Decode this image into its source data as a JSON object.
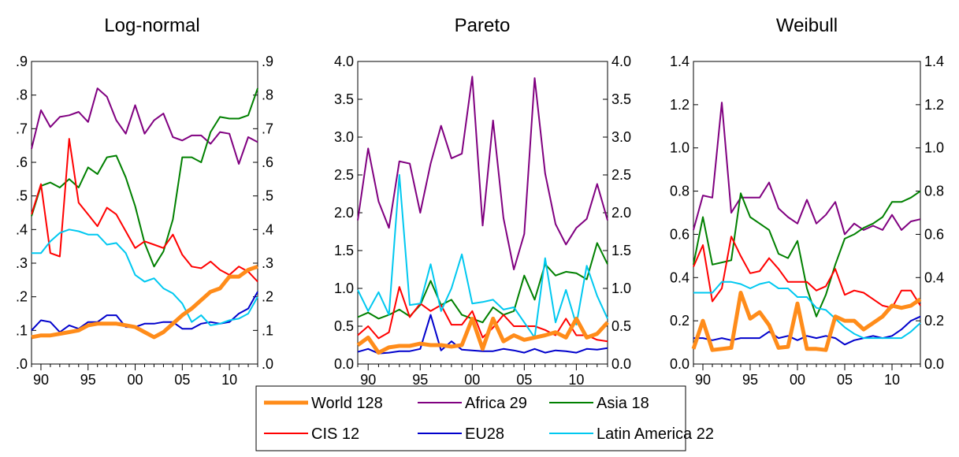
{
  "chart_data": [
    {
      "type": "line",
      "title": "Log-normal",
      "x": [
        1989,
        1990,
        1991,
        1992,
        1993,
        1994,
        1995,
        1996,
        1997,
        1998,
        1999,
        2000,
        2001,
        2002,
        2003,
        2004,
        2005,
        2006,
        2007,
        2008,
        2009,
        2010,
        2011,
        2012,
        2013
      ],
      "xticks": [
        "90",
        "95",
        "00",
        "05",
        "10"
      ],
      "xtick_values": [
        1990,
        1995,
        2000,
        2005,
        2010
      ],
      "xlim": [
        1989,
        2013
      ],
      "yticks": [
        ".0",
        ".1",
        ".2",
        ".3",
        ".4",
        ".5",
        ".6",
        ".7",
        ".8",
        ".9"
      ],
      "ytick_values": [
        0,
        0.1,
        0.2,
        0.3,
        0.4,
        0.5,
        0.6,
        0.7,
        0.8,
        0.9
      ],
      "ylim": [
        0,
        0.9
      ],
      "grid": false,
      "series": [
        {
          "name": "World 128",
          "color": "#ff8c1a",
          "values": [
            0.08,
            0.085,
            0.085,
            0.09,
            0.095,
            0.1,
            0.115,
            0.12,
            0.12,
            0.12,
            0.115,
            0.11,
            0.095,
            0.08,
            0.095,
            0.12,
            0.145,
            0.165,
            0.19,
            0.215,
            0.225,
            0.26,
            0.26,
            0.28,
            0.29
          ]
        },
        {
          "name": "Africa 29",
          "color": "#800080",
          "values": [
            0.64,
            0.755,
            0.705,
            0.735,
            0.74,
            0.75,
            0.72,
            0.82,
            0.795,
            0.725,
            0.685,
            0.77,
            0.685,
            0.725,
            0.745,
            0.675,
            0.665,
            0.68,
            0.68,
            0.655,
            0.69,
            0.685,
            0.595,
            0.675,
            0.66
          ]
        },
        {
          "name": "Asia 18",
          "color": "#008000",
          "values": [
            0.44,
            0.53,
            0.54,
            0.525,
            0.55,
            0.525,
            0.585,
            0.565,
            0.615,
            0.62,
            0.555,
            0.47,
            0.36,
            0.29,
            0.335,
            0.43,
            0.615,
            0.615,
            0.6,
            0.69,
            0.735,
            0.73,
            0.73,
            0.74,
            0.82
          ]
        },
        {
          "name": "CIS 12",
          "color": "#ff0000",
          "values": [
            0.445,
            0.535,
            0.33,
            0.32,
            0.67,
            0.48,
            0.445,
            0.41,
            0.465,
            0.445,
            0.395,
            0.345,
            0.365,
            0.355,
            0.345,
            0.385,
            0.325,
            0.29,
            0.285,
            0.305,
            0.28,
            0.265,
            0.29,
            0.275,
            0.245
          ]
        },
        {
          "name": "EU28",
          "color": "#0000cc",
          "values": [
            0.1,
            0.13,
            0.125,
            0.095,
            0.115,
            0.105,
            0.125,
            0.125,
            0.145,
            0.145,
            0.11,
            0.11,
            0.12,
            0.12,
            0.125,
            0.125,
            0.105,
            0.105,
            0.12,
            0.125,
            0.12,
            0.125,
            0.15,
            0.165,
            0.215
          ]
        },
        {
          "name": "Latin America 22",
          "color": "#00c8f0",
          "values": [
            0.33,
            0.33,
            0.365,
            0.39,
            0.4,
            0.395,
            0.385,
            0.385,
            0.355,
            0.36,
            0.33,
            0.265,
            0.245,
            0.255,
            0.225,
            0.21,
            0.18,
            0.125,
            0.145,
            0.115,
            0.12,
            0.13,
            0.135,
            0.15,
            0.2
          ]
        }
      ]
    },
    {
      "type": "line",
      "title": "Pareto",
      "x": [
        1989,
        1990,
        1991,
        1992,
        1993,
        1994,
        1995,
        1996,
        1997,
        1998,
        1999,
        2000,
        2001,
        2002,
        2003,
        2004,
        2005,
        2006,
        2007,
        2008,
        2009,
        2010,
        2011,
        2012,
        2013
      ],
      "xticks": [
        "90",
        "95",
        "00",
        "05",
        "10"
      ],
      "xtick_values": [
        1990,
        1995,
        2000,
        2005,
        2010
      ],
      "xlim": [
        1989,
        2013
      ],
      "yticks": [
        "0.0",
        "0.5",
        "1.0",
        "1.5",
        "2.0",
        "2.5",
        "3.0",
        "3.5",
        "4.0"
      ],
      "ytick_values": [
        0,
        0.5,
        1,
        1.5,
        2,
        2.5,
        3,
        3.5,
        4
      ],
      "ylim": [
        0,
        4
      ],
      "grid": false,
      "series": [
        {
          "name": "World 128",
          "color": "#ff8c1a",
          "values": [
            0.25,
            0.35,
            0.15,
            0.22,
            0.24,
            0.24,
            0.27,
            0.25,
            0.25,
            0.23,
            0.25,
            0.6,
            0.2,
            0.6,
            0.3,
            0.38,
            0.32,
            0.35,
            0.38,
            0.42,
            0.35,
            0.6,
            0.35,
            0.4,
            0.55
          ]
        },
        {
          "name": "Africa 29",
          "color": "#800080",
          "values": [
            1.9,
            2.85,
            2.15,
            1.8,
            2.68,
            2.65,
            2.0,
            2.65,
            3.15,
            2.72,
            2.78,
            3.8,
            1.83,
            3.22,
            1.93,
            1.25,
            1.72,
            3.78,
            2.52,
            1.85,
            1.58,
            1.8,
            1.92,
            2.38,
            1.9
          ]
        },
        {
          "name": "Asia 18",
          "color": "#008000",
          "values": [
            0.62,
            0.68,
            0.6,
            0.65,
            0.72,
            0.63,
            0.78,
            1.1,
            0.78,
            0.85,
            0.65,
            0.6,
            0.55,
            0.75,
            0.65,
            0.7,
            1.17,
            0.85,
            1.32,
            1.17,
            1.22,
            1.2,
            1.12,
            1.6,
            1.32
          ]
        },
        {
          "name": "CIS 12",
          "color": "#ff0000",
          "values": [
            0.38,
            0.5,
            0.34,
            0.42,
            1.02,
            0.62,
            0.8,
            0.7,
            0.78,
            0.52,
            0.52,
            0.7,
            0.35,
            0.48,
            0.65,
            0.5,
            0.5,
            0.5,
            0.45,
            0.38,
            0.6,
            0.38,
            0.38,
            0.32,
            0.3
          ]
        },
        {
          "name": "EU28",
          "color": "#0000cc",
          "values": [
            0.16,
            0.2,
            0.14,
            0.15,
            0.17,
            0.17,
            0.2,
            0.65,
            0.18,
            0.3,
            0.19,
            0.18,
            0.17,
            0.17,
            0.2,
            0.18,
            0.15,
            0.2,
            0.15,
            0.18,
            0.17,
            0.15,
            0.2,
            0.19,
            0.21
          ]
        },
        {
          "name": "Latin America 22",
          "color": "#00c8f0",
          "values": [
            0.98,
            0.7,
            0.95,
            0.65,
            2.5,
            0.78,
            0.8,
            1.32,
            0.7,
            1.0,
            1.45,
            0.8,
            0.82,
            0.85,
            0.72,
            0.75,
            0.55,
            0.35,
            1.4,
            0.55,
            0.98,
            0.52,
            1.3,
            0.9,
            0.6
          ]
        }
      ]
    },
    {
      "type": "line",
      "title": "Weibull",
      "x": [
        1989,
        1990,
        1991,
        1992,
        1993,
        1994,
        1995,
        1996,
        1997,
        1998,
        1999,
        2000,
        2001,
        2002,
        2003,
        2004,
        2005,
        2006,
        2007,
        2008,
        2009,
        2010,
        2011,
        2012,
        2013
      ],
      "xticks": [
        "90",
        "95",
        "00",
        "05",
        "10"
      ],
      "xtick_values": [
        1990,
        1995,
        2000,
        2005,
        2010
      ],
      "xlim": [
        1989,
        2013
      ],
      "yticks": [
        "0.0",
        "0.2",
        "0.4",
        "0.6",
        "0.8",
        "1.0",
        "1.2",
        "1.4"
      ],
      "ytick_values": [
        0,
        0.2,
        0.4,
        0.6,
        0.8,
        1.0,
        1.2,
        1.4
      ],
      "ylim": [
        0,
        1.4
      ],
      "grid": false,
      "series": [
        {
          "name": "World 128",
          "color": "#ff8c1a",
          "values": [
            0.07,
            0.2,
            0.065,
            0.07,
            0.075,
            0.33,
            0.21,
            0.24,
            0.18,
            0.075,
            0.08,
            0.28,
            0.07,
            0.07,
            0.065,
            0.22,
            0.2,
            0.2,
            0.16,
            0.19,
            0.22,
            0.27,
            0.26,
            0.27,
            0.3
          ]
        },
        {
          "name": "Africa 29",
          "color": "#800080",
          "values": [
            0.62,
            0.78,
            0.77,
            1.21,
            0.7,
            0.77,
            0.77,
            0.77,
            0.84,
            0.72,
            0.68,
            0.65,
            0.76,
            0.65,
            0.69,
            0.75,
            0.6,
            0.65,
            0.62,
            0.64,
            0.62,
            0.69,
            0.62,
            0.66,
            0.67
          ]
        },
        {
          "name": "Asia 18",
          "color": "#008000",
          "values": [
            0.46,
            0.68,
            0.46,
            0.47,
            0.48,
            0.79,
            0.68,
            0.65,
            0.62,
            0.51,
            0.49,
            0.57,
            0.35,
            0.22,
            0.32,
            0.46,
            0.58,
            0.6,
            0.63,
            0.65,
            0.68,
            0.75,
            0.75,
            0.77,
            0.8
          ]
        },
        {
          "name": "CIS 12",
          "color": "#ff0000",
          "values": [
            0.45,
            0.55,
            0.29,
            0.35,
            0.59,
            0.5,
            0.42,
            0.43,
            0.49,
            0.44,
            0.38,
            0.38,
            0.38,
            0.34,
            0.36,
            0.44,
            0.32,
            0.34,
            0.33,
            0.3,
            0.27,
            0.26,
            0.34,
            0.34,
            0.27
          ]
        },
        {
          "name": "EU28",
          "color": "#0000cc",
          "values": [
            0.12,
            0.12,
            0.11,
            0.12,
            0.11,
            0.12,
            0.12,
            0.12,
            0.15,
            0.12,
            0.13,
            0.11,
            0.13,
            0.12,
            0.13,
            0.12,
            0.09,
            0.11,
            0.12,
            0.13,
            0.12,
            0.13,
            0.16,
            0.2,
            0.22
          ]
        },
        {
          "name": "Latin America 22",
          "color": "#00c8f0",
          "values": [
            0.33,
            0.33,
            0.33,
            0.38,
            0.38,
            0.37,
            0.35,
            0.37,
            0.38,
            0.35,
            0.35,
            0.31,
            0.31,
            0.26,
            0.25,
            0.21,
            0.17,
            0.14,
            0.12,
            0.12,
            0.12,
            0.12,
            0.12,
            0.15,
            0.19
          ]
        }
      ]
    }
  ],
  "legend": {
    "placement": "bottom-center",
    "columns": 3,
    "entries": [
      {
        "name": "World 128",
        "color": "#ff8c1a",
        "thick": true
      },
      {
        "name": "Africa 29",
        "color": "#800080",
        "thick": false
      },
      {
        "name": "Asia 18",
        "color": "#008000",
        "thick": false
      },
      {
        "name": "CIS 12",
        "color": "#ff0000",
        "thick": false
      },
      {
        "name": "EU28",
        "color": "#0000cc",
        "thick": false
      },
      {
        "name": "Latin America 22",
        "color": "#00c8f0",
        "thick": false
      }
    ]
  }
}
